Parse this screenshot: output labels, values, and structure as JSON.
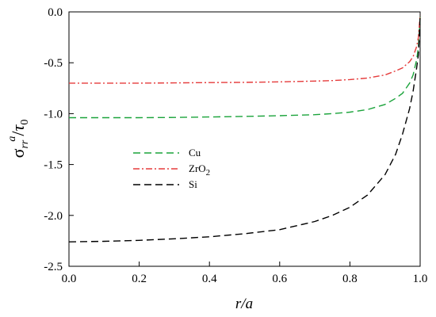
{
  "chart_data": {
    "type": "line",
    "xlabel": "r/a",
    "ylabel": {
      "main": "σ",
      "sub": "rr",
      "sup": "a",
      "slash": "/",
      "denom": "τ",
      "denom_sub": "0"
    },
    "xlim": [
      0.0,
      1.0
    ],
    "ylim": [
      -2.5,
      0.0
    ],
    "xticks": [
      0.0,
      0.2,
      0.4,
      0.6,
      0.8,
      1.0
    ],
    "xtick_labels": [
      "0.0",
      "0.2",
      "0.4",
      "0.6",
      "0.8",
      "1.0"
    ],
    "yticks": [
      0.0,
      -0.5,
      -1.0,
      -1.5,
      -2.0,
      -2.5
    ],
    "ytick_labels": [
      "0.0",
      "-0.5",
      "-1.0",
      "-1.5",
      "-2.0",
      "-2.5"
    ],
    "grid": false,
    "legend_position": "center-left",
    "series": [
      {
        "name": "Cu",
        "name_main": "Cu",
        "name_sub": "",
        "color": "#1aa33a",
        "dash": "dashed",
        "x": [
          0.0,
          0.1,
          0.2,
          0.3,
          0.4,
          0.5,
          0.6,
          0.7,
          0.75,
          0.8,
          0.85,
          0.9,
          0.93,
          0.95,
          0.97,
          0.98,
          0.99,
          0.995,
          1.0
        ],
        "y": [
          -1.04,
          -1.04,
          -1.04,
          -1.037,
          -1.033,
          -1.027,
          -1.02,
          -1.01,
          -1.0,
          -0.985,
          -0.96,
          -0.91,
          -0.85,
          -0.8,
          -0.7,
          -0.62,
          -0.47,
          -0.35,
          -0.05
        ]
      },
      {
        "name": "ZrO2",
        "name_main": "ZrO",
        "name_sub": "2",
        "color": "#e53b3b",
        "dash": "dashdot",
        "x": [
          0.0,
          0.1,
          0.2,
          0.3,
          0.4,
          0.5,
          0.6,
          0.7,
          0.75,
          0.8,
          0.85,
          0.9,
          0.93,
          0.95,
          0.97,
          0.98,
          0.99,
          0.995,
          1.0
        ],
        "y": [
          -0.7,
          -0.7,
          -0.7,
          -0.698,
          -0.695,
          -0.692,
          -0.688,
          -0.68,
          -0.675,
          -0.665,
          -0.65,
          -0.62,
          -0.58,
          -0.55,
          -0.49,
          -0.44,
          -0.34,
          -0.25,
          -0.03
        ]
      },
      {
        "name": "Si",
        "name_main": "Si",
        "name_sub": "",
        "color": "#000000",
        "dash": "dashed",
        "x": [
          0.0,
          0.1,
          0.2,
          0.3,
          0.4,
          0.5,
          0.6,
          0.7,
          0.75,
          0.8,
          0.85,
          0.9,
          0.93,
          0.95,
          0.97,
          0.98,
          0.99,
          0.995,
          1.0
        ],
        "y": [
          -2.26,
          -2.255,
          -2.245,
          -2.23,
          -2.21,
          -2.18,
          -2.14,
          -2.06,
          -2.0,
          -1.92,
          -1.8,
          -1.6,
          -1.4,
          -1.2,
          -0.95,
          -0.78,
          -0.55,
          -0.42,
          -0.05
        ]
      }
    ]
  }
}
